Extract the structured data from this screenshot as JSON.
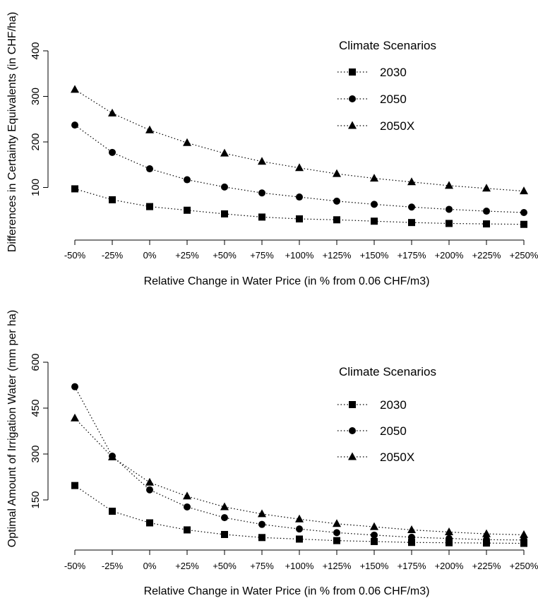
{
  "chart_data": [
    {
      "type": "line",
      "xlabel": "Relative Change in Water Price (in % from 0.06 CHF/m3)",
      "ylabel": "Differences in Certainty Equivalents (in CHF/ha)",
      "categories": [
        "-50%",
        "-25%",
        "0%",
        "+25%",
        "+50%",
        "+75%",
        "+100%",
        "+125%",
        "+150%",
        "+175%",
        "+200%",
        "+225%",
        "+250%"
      ],
      "ylim": [
        0,
        400
      ],
      "yticks": [
        "100",
        "200",
        "300",
        "400"
      ],
      "legend_title": "Climate Scenarios",
      "legend_position": "top-right",
      "series": [
        {
          "name": "2030",
          "marker": "square",
          "values": [
            97,
            73,
            58,
            50,
            42,
            35,
            31,
            29,
            26,
            23,
            21,
            20,
            19
          ]
        },
        {
          "name": "2050",
          "marker": "circle",
          "values": [
            237,
            177,
            141,
            117,
            101,
            88,
            79,
            70,
            63,
            57,
            52,
            48,
            45
          ]
        },
        {
          "name": "2050X",
          "marker": "triangle",
          "values": [
            315,
            263,
            226,
            198,
            175,
            157,
            143,
            130,
            120,
            112,
            104,
            98,
            92
          ]
        }
      ]
    },
    {
      "type": "line",
      "xlabel": "Relative Change in Water Price (in % from 0.06 CHF/m3)",
      "ylabel": "Optimal Amount of Irrigation Water (mm per ha)",
      "categories": [
        "-50%",
        "-25%",
        "0%",
        "+25%",
        "+50%",
        "+75%",
        "+100%",
        "+125%",
        "+150%",
        "+175%",
        "+200%",
        "+225%",
        "+250%"
      ],
      "ylim": [
        0,
        600
      ],
      "yticks": [
        "150",
        "300",
        "450",
        "600"
      ],
      "legend_title": "Climate Scenarios",
      "legend_position": "top-right",
      "series": [
        {
          "name": "2030",
          "marker": "square",
          "values": [
            197,
            113,
            75,
            52,
            37,
            27,
            22,
            17,
            14,
            11,
            10,
            9,
            8
          ]
        },
        {
          "name": "2050",
          "marker": "circle",
          "values": [
            520,
            293,
            183,
            127,
            92,
            70,
            55,
            43,
            35,
            28,
            24,
            20,
            19
          ]
        },
        {
          "name": "2050X",
          "marker": "triangle",
          "values": [
            417,
            290,
            207,
            162,
            127,
            104,
            87,
            72,
            62,
            52,
            45,
            39,
            36
          ]
        }
      ]
    }
  ]
}
